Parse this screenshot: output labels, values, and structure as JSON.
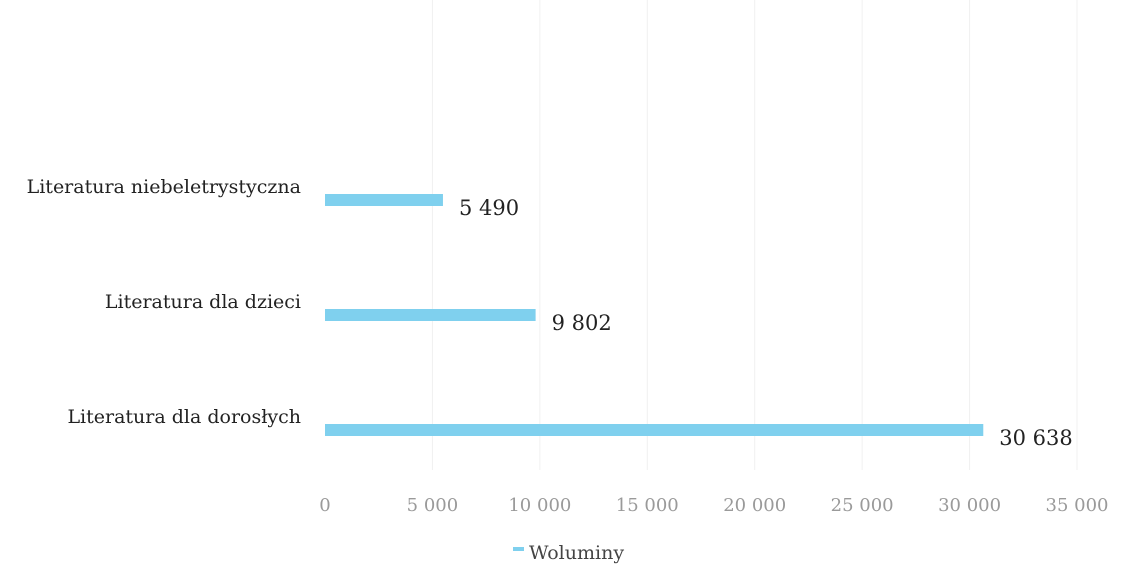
{
  "chart_data": {
    "type": "bar",
    "orientation": "horizontal",
    "categories": [
      "Literatura niebeletrystyczna",
      "Literatura dla dzieci",
      "Literatura dla dorosłych"
    ],
    "series": [
      {
        "name": "Woluminy",
        "values": [
          5490,
          9802,
          30638
        ],
        "value_labels": [
          "5 490",
          "9 802",
          "30 638"
        ]
      }
    ],
    "xlim": [
      0,
      35000
    ],
    "xticks": [
      0,
      5000,
      10000,
      15000,
      20000,
      25000,
      30000,
      35000
    ],
    "xtick_labels": [
      "0",
      "5 000",
      "10 000",
      "15 000",
      "20 000",
      "25 000",
      "30 000",
      "35 000"
    ],
    "grid": true,
    "legend": "bottom",
    "colors": {
      "bar": "#7fd0ee",
      "grid": "#f0f0f0"
    }
  }
}
